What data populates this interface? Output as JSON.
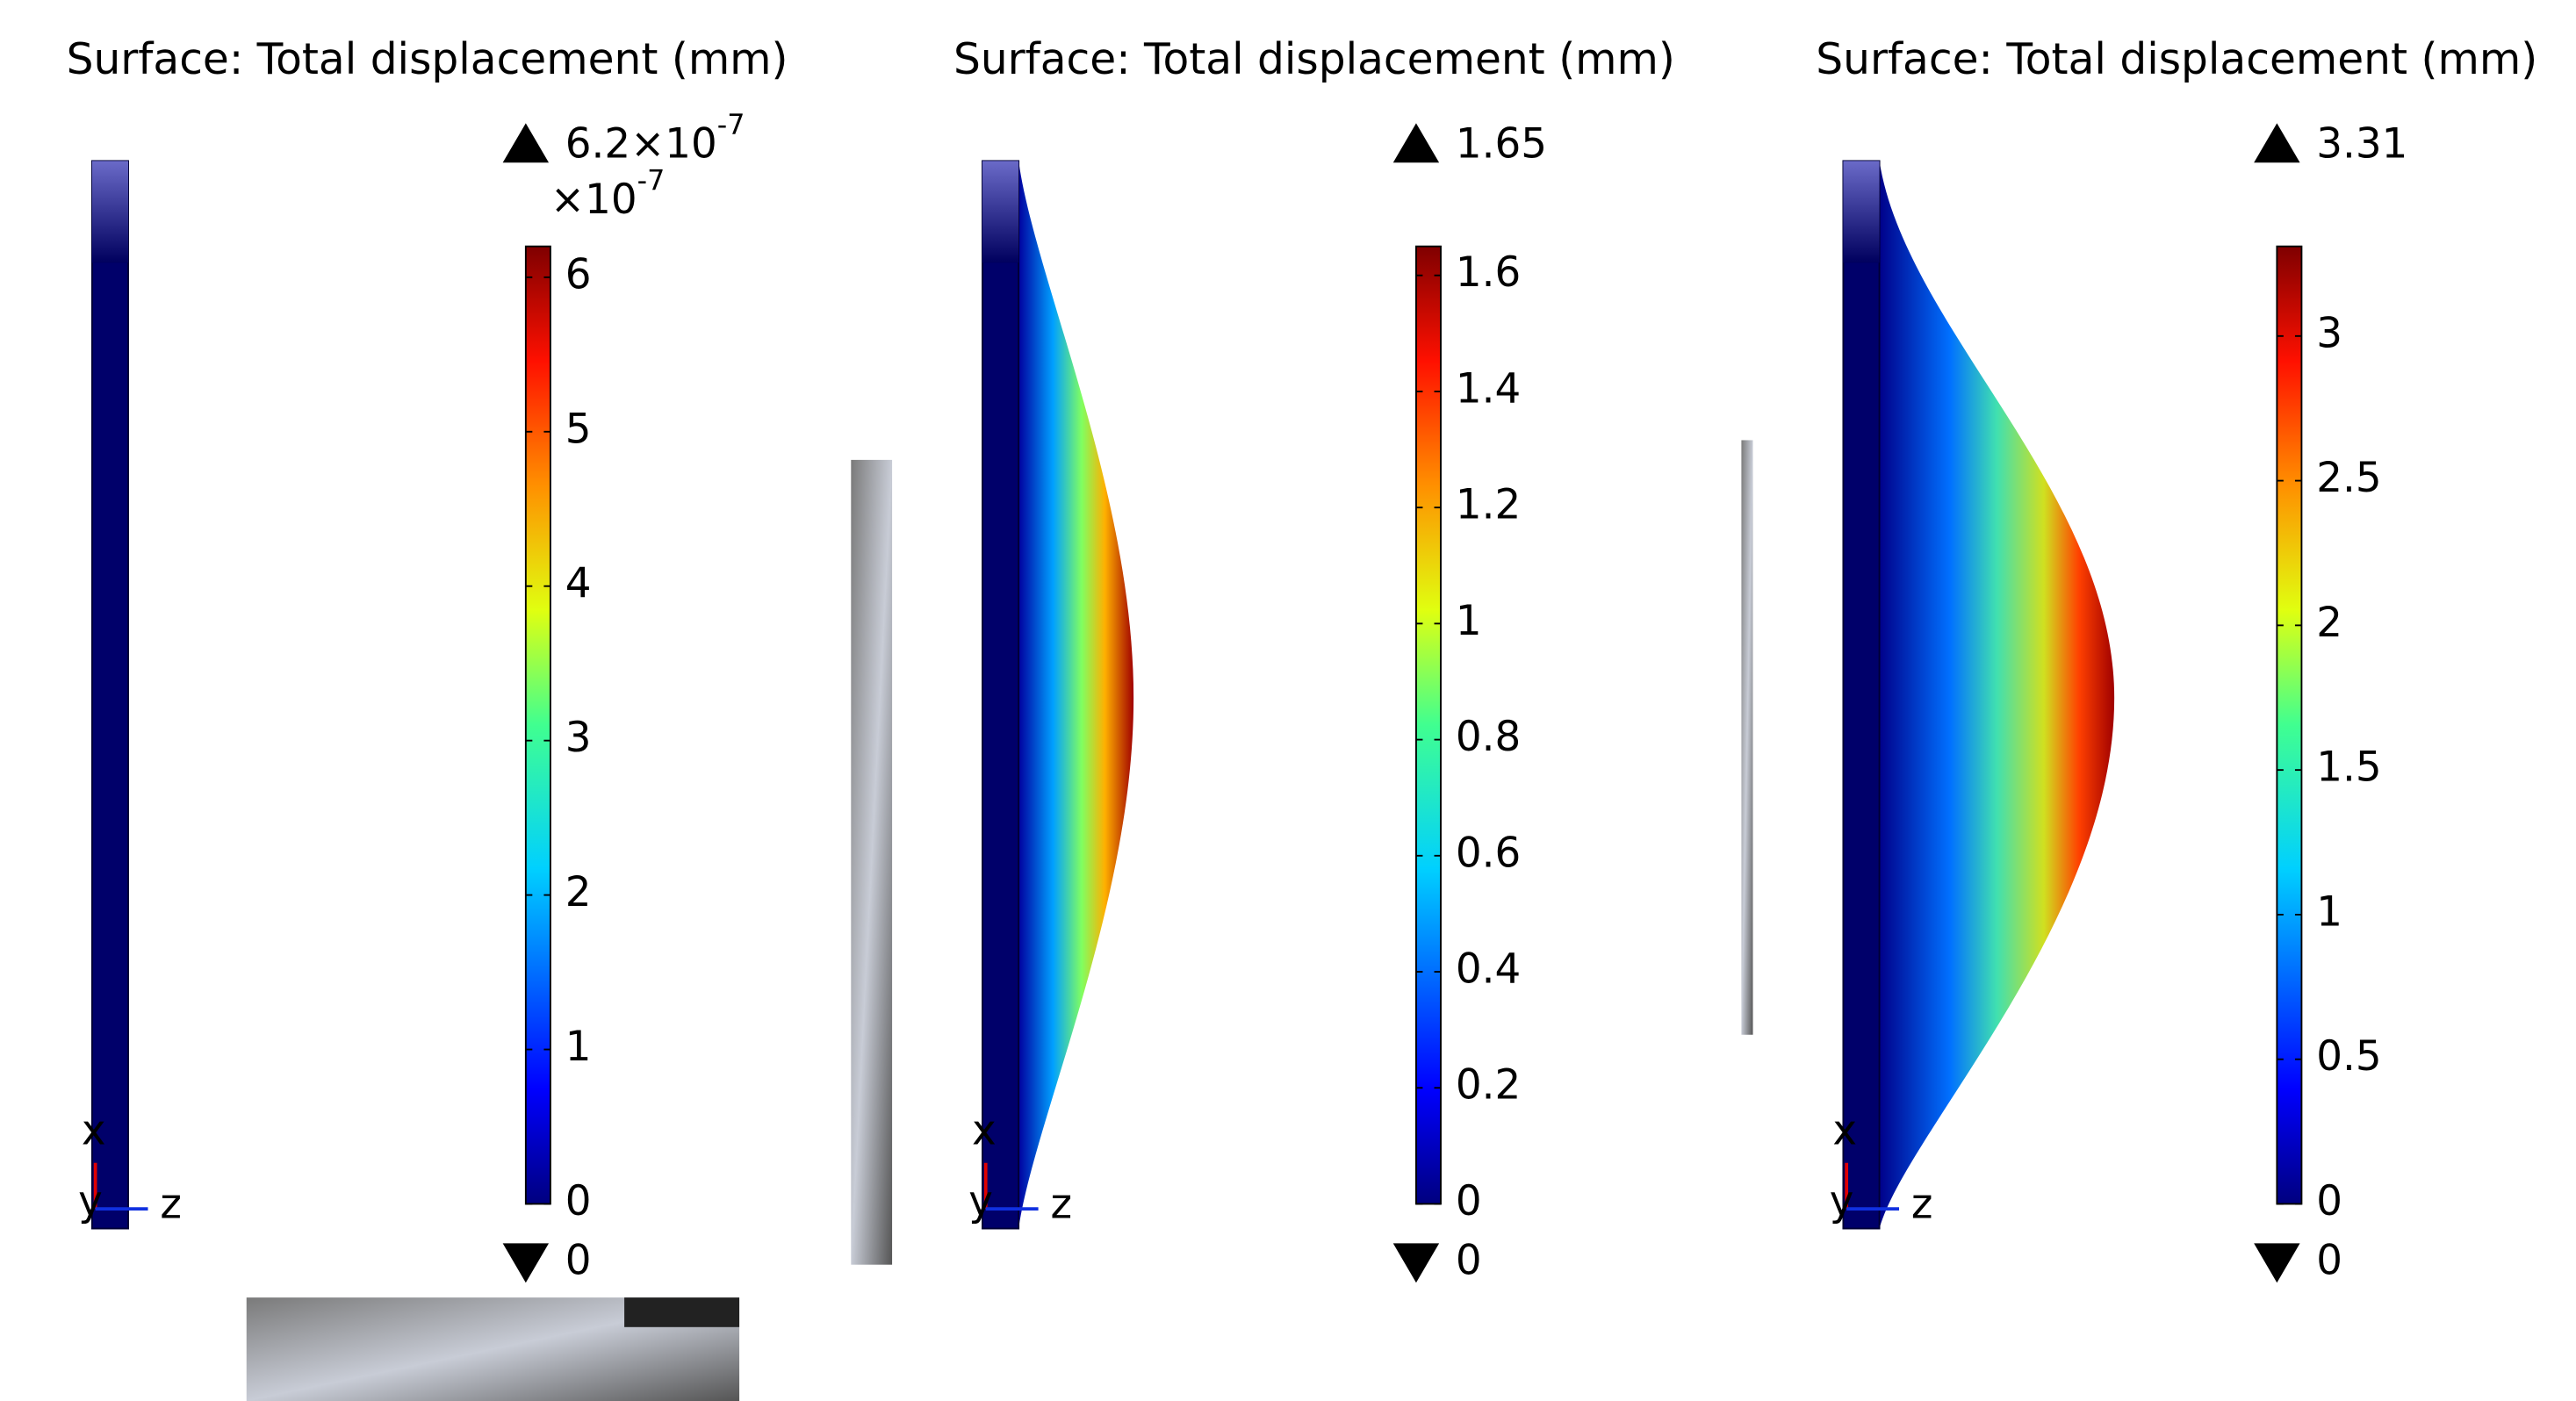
{
  "chart_data": [
    {
      "type": "colorbar",
      "title": "Surface: Total displacement (mm)",
      "min": 0,
      "max": {
        "value": 6.2,
        "label": "6.2×10"
      },
      "max_exponent": "-7",
      "scale": "×10",
      "scale_exponent": "-7",
      "ticks": [
        0,
        1,
        2,
        3,
        4,
        5,
        6
      ],
      "axis_labels": [
        "x",
        "y",
        "z"
      ]
    },
    {
      "type": "colorbar",
      "title": "Surface: Total displacement (mm)",
      "min": 0,
      "max": 1.65,
      "ticks": [
        0,
        0.2,
        0.4,
        0.6,
        0.8,
        1,
        1.2,
        1.4,
        1.6
      ],
      "axis_labels": [
        "x",
        "y",
        "z"
      ]
    },
    {
      "type": "colorbar",
      "title": "Surface: Total displacement (mm)",
      "min": 0,
      "max": 3.31,
      "ticks": [
        0,
        0.5,
        1,
        1.5,
        2,
        2.5,
        3
      ],
      "axis_labels": [
        "x",
        "y",
        "z"
      ]
    }
  ]
}
